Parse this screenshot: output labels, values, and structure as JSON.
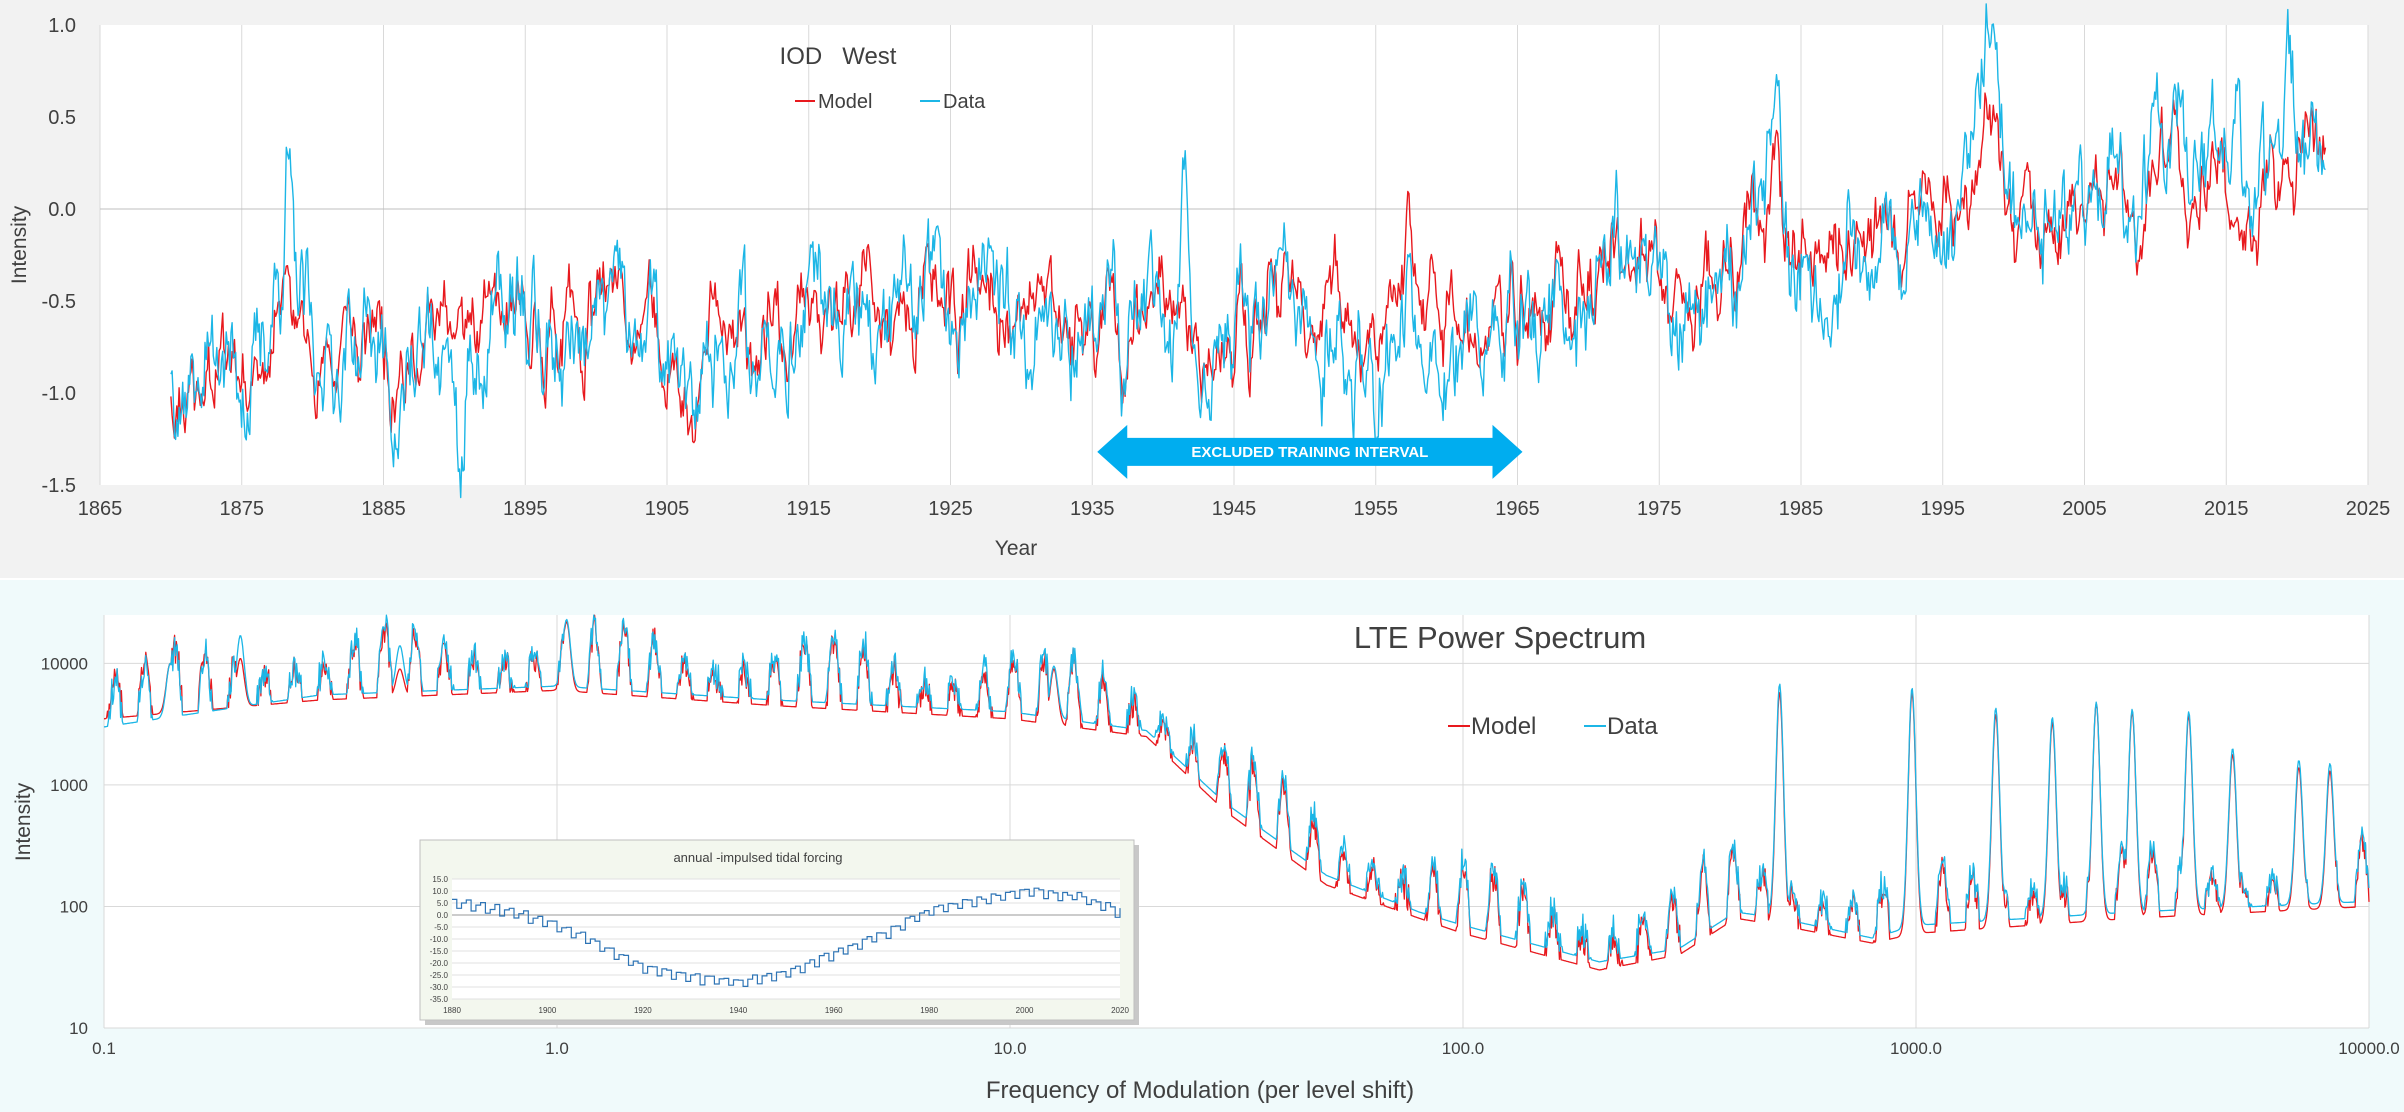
{
  "colors": {
    "model": "#e8191e",
    "data": "#1cb6e6",
    "grid": "#d9d9d9",
    "zero": "#bfbfbf",
    "panel_top_bg": "#f2f2f2",
    "panel_bottom_bg": "#f0fafb",
    "plot_bg": "#ffffff",
    "arrow": "#00adef",
    "inset_line": "#2e74b5",
    "inset_bg": "#f3f7ee",
    "tick_text": "#404040"
  },
  "chart_data": [
    {
      "type": "line",
      "title": "IOD   West",
      "xlabel": "Year",
      "ylabel": "Intensity",
      "xlim": [
        1865,
        2025
      ],
      "ylim": [
        -1.5,
        1.0
      ],
      "xticks": [
        "1865",
        "1875",
        "1885",
        "1895",
        "1905",
        "1915",
        "1925",
        "1935",
        "1945",
        "1955",
        "1965",
        "1975",
        "1985",
        "1995",
        "2005",
        "2015",
        "2025"
      ],
      "yticks": [
        "1.0",
        "0.5",
        "0.0",
        "-0.5",
        "-1.0",
        "-1.5"
      ],
      "grid": "vertical",
      "legend": "top",
      "annotation": {
        "text": "EXCLUDED TRAINING INTERVAL",
        "x_start": 1935,
        "x_end": 1965,
        "y": -1.32
      },
      "series": [
        {
          "name": "Model",
          "x_start": 1870,
          "x_end": 2022,
          "anchors": [
            [
              1870,
              -0.9
            ],
            [
              1875,
              -0.78
            ],
            [
              1878,
              -0.5
            ],
            [
              1880,
              -0.7
            ],
            [
              1885,
              -0.7
            ],
            [
              1890,
              -0.72
            ],
            [
              1895,
              -0.72
            ],
            [
              1900,
              -0.66
            ],
            [
              1905,
              -0.73
            ],
            [
              1910,
              -0.76
            ],
            [
              1915,
              -0.66
            ],
            [
              1920,
              -0.64
            ],
            [
              1925,
              -0.6
            ],
            [
              1930,
              -0.62
            ],
            [
              1935,
              -0.6
            ],
            [
              1940,
              -0.6
            ],
            [
              1945,
              -0.68
            ],
            [
              1950,
              -0.5
            ],
            [
              1955,
              -0.44
            ],
            [
              1960,
              -0.54
            ],
            [
              1965,
              -0.6
            ],
            [
              1970,
              -0.48
            ],
            [
              1972,
              -0.1
            ],
            [
              1975,
              -0.4
            ],
            [
              1980,
              -0.38
            ],
            [
              1983,
              -0.05
            ],
            [
              1985,
              -0.28
            ],
            [
              1990,
              -0.1
            ],
            [
              1995,
              -0.12
            ],
            [
              1998,
              0.2
            ],
            [
              2000,
              -0.12
            ],
            [
              2005,
              0.0
            ],
            [
              2010,
              0.12
            ],
            [
              2015,
              0.12
            ],
            [
              2020,
              0.28
            ],
            [
              2022,
              0.2
            ]
          ]
        },
        {
          "name": "Data",
          "x_start": 1870,
          "x_end": 2022,
          "anchors": [
            [
              1870,
              -0.75
            ],
            [
              1875,
              -0.8
            ],
            [
              1878,
              -0.35
            ],
            [
              1880,
              -0.75
            ],
            [
              1885,
              -0.78
            ],
            [
              1890,
              -0.95
            ],
            [
              1895,
              -0.72
            ],
            [
              1900,
              -0.72
            ],
            [
              1905,
              -0.78
            ],
            [
              1910,
              -0.82
            ],
            [
              1915,
              -0.62
            ],
            [
              1920,
              -0.7
            ],
            [
              1925,
              -0.62
            ],
            [
              1930,
              -0.65
            ],
            [
              1935,
              -0.62
            ],
            [
              1940,
              -0.6
            ],
            [
              1945,
              -0.65
            ],
            [
              1950,
              -0.72
            ],
            [
              1955,
              -0.72
            ],
            [
              1960,
              -0.6
            ],
            [
              1965,
              -0.65
            ],
            [
              1970,
              -0.5
            ],
            [
              1972,
              0.0
            ],
            [
              1975,
              -0.45
            ],
            [
              1980,
              -0.48
            ],
            [
              1983,
              0.2
            ],
            [
              1985,
              -0.3
            ],
            [
              1990,
              -0.08
            ],
            [
              1995,
              -0.1
            ],
            [
              1998,
              0.45
            ],
            [
              2000,
              -0.08
            ],
            [
              2005,
              0.0
            ],
            [
              2010,
              0.2
            ],
            [
              2015,
              0.3
            ],
            [
              2020,
              0.32
            ],
            [
              2022,
              0.18
            ]
          ]
        }
      ]
    },
    {
      "type": "line",
      "title": "LTE Power Spectrum",
      "xlabel": "Frequency of Modulation (per level shift)",
      "ylabel": "Intensity",
      "xscale": "log",
      "yscale": "log",
      "xlim": [
        0.1,
        10000.0
      ],
      "ylim": [
        10,
        25000
      ],
      "xticks": [
        "0.1",
        "1.0",
        "10.0",
        "100.0",
        "1000.0",
        "10000.0"
      ],
      "yticks": [
        "10000",
        "1000",
        "100",
        "10"
      ],
      "grid": "both",
      "legend": "top-right",
      "series": [
        {
          "name": "Model",
          "envelope": [
            [
              0.1,
              3500
            ],
            [
              0.3,
              5000
            ],
            [
              1.0,
              6000
            ],
            [
              3.0,
              4500
            ],
            [
              10,
              3500
            ],
            [
              20,
              2500
            ],
            [
              30,
              600
            ],
            [
              50,
              150
            ],
            [
              80,
              80
            ],
            [
              100,
              60
            ],
            [
              200,
              30
            ],
            [
              300,
              40
            ],
            [
              400,
              80
            ],
            [
              500,
              70
            ],
            [
              800,
              50
            ],
            [
              1000,
              60
            ],
            [
              3000,
              80
            ],
            [
              10000,
              100
            ]
          ],
          "peaks": [
            [
              0.14,
              10000
            ],
            [
              0.2,
              11000
            ],
            [
              0.45,
              9000
            ],
            [
              1.05,
              22000
            ],
            [
              12.5,
              9000
            ],
            [
              500,
              5800
            ],
            [
              980,
              5800
            ],
            [
              1500,
              3800
            ],
            [
              2000,
              3300
            ],
            [
              2500,
              4700
            ],
            [
              3000,
              4000
            ],
            [
              4000,
              3700
            ],
            [
              5000,
              1800
            ],
            [
              7000,
              1400
            ],
            [
              8200,
              1300
            ]
          ]
        },
        {
          "name": "Data",
          "envelope": [
            [
              0.1,
              3000
            ],
            [
              0.3,
              5500
            ],
            [
              1.0,
              6500
            ],
            [
              3.0,
              5000
            ],
            [
              10,
              4000
            ],
            [
              20,
              2800
            ],
            [
              30,
              700
            ],
            [
              50,
              180
            ],
            [
              80,
              90
            ],
            [
              100,
              70
            ],
            [
              200,
              35
            ],
            [
              300,
              45
            ],
            [
              400,
              90
            ],
            [
              500,
              80
            ],
            [
              800,
              55
            ],
            [
              1000,
              70
            ],
            [
              3000,
              90
            ],
            [
              10000,
              110
            ]
          ],
          "peaks": [
            [
              0.14,
              10000
            ],
            [
              0.2,
              17000
            ],
            [
              0.45,
              14000
            ],
            [
              1.05,
              23000
            ],
            [
              12.5,
              9500
            ],
            [
              500,
              6800
            ],
            [
              980,
              6300
            ],
            [
              1500,
              4300
            ],
            [
              2000,
              3600
            ],
            [
              2500,
              4800
            ],
            [
              3000,
              4200
            ],
            [
              4000,
              4000
            ],
            [
              5000,
              2000
            ],
            [
              7000,
              1600
            ],
            [
              8200,
              1500
            ]
          ]
        }
      ],
      "inset": {
        "title": "annual -impulsed tidal forcing",
        "xlim": [
          1880,
          2020
        ],
        "ylim": [
          -35.0,
          15.0
        ],
        "xticks": [
          "1880",
          "1900",
          "1920",
          "1940",
          "1960",
          "1980",
          "2000",
          "2020"
        ],
        "yticks": [
          "15.0",
          "10.0",
          "5.0",
          "0.0",
          "-5.0",
          "-10.0",
          "-15.0",
          "-20.0",
          "-25.0",
          "-30.0",
          "-35.0"
        ],
        "series": [
          {
            "anchors": [
              [
                1880,
                5
              ],
              [
                1890,
                2
              ],
              [
                1900,
                -3
              ],
              [
                1910,
                -12
              ],
              [
                1920,
                -22
              ],
              [
                1930,
                -26
              ],
              [
                1940,
                -28
              ],
              [
                1950,
                -24
              ],
              [
                1960,
                -16
              ],
              [
                1970,
                -8
              ],
              [
                1980,
                2
              ],
              [
                1990,
                6
              ],
              [
                2000,
                10
              ],
              [
                2010,
                8
              ],
              [
                2020,
                1
              ]
            ]
          }
        ]
      }
    }
  ]
}
